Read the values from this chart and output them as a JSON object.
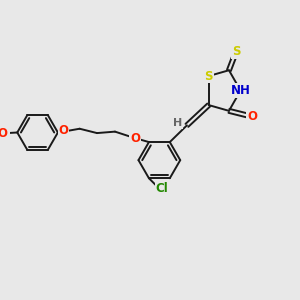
{
  "background_color": "#e8e8e8",
  "bond_color": "#1a1a1a",
  "atom_colors": {
    "S": "#cccc00",
    "N": "#0000cc",
    "O": "#ff2200",
    "Cl": "#228800",
    "H": "#666666",
    "C": "#1a1a1a"
  },
  "bond_width": 1.4,
  "font_size": 8.5,
  "figsize": [
    3.0,
    3.0
  ],
  "dpi": 100,
  "xlim": [
    0,
    10
  ],
  "ylim": [
    0,
    10
  ]
}
